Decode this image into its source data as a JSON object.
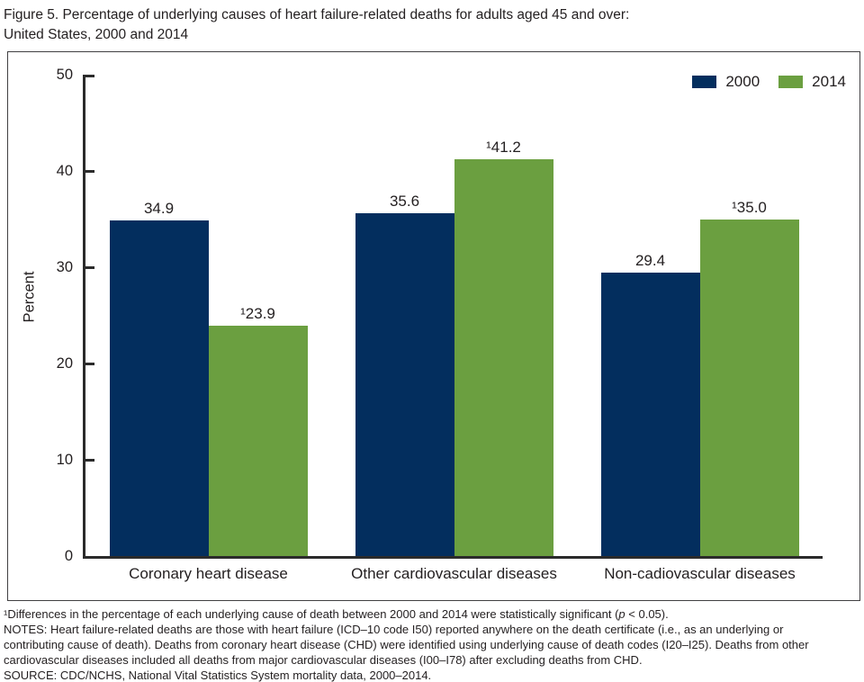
{
  "header": {
    "title_line1": "Figure 5. Percentage of underlying causes of heart failure-related deaths for adults aged 45 and over:",
    "title_line2": "United States, 2000 and 2014"
  },
  "chart_data": {
    "type": "bar",
    "title": "Figure 5. Percentage of underlying causes of heart failure-related deaths for adults aged 45 and over: United States, 2000 and 2014",
    "xlabel": "",
    "ylabel": "Percent",
    "ylim": [
      0,
      50
    ],
    "yticks": [
      0,
      10,
      20,
      30,
      40,
      50
    ],
    "grid": false,
    "legend_position": "top-right",
    "categories": [
      "Coronary heart disease",
      "Other cardiovascular diseases",
      "Non-cadiovascular diseases"
    ],
    "series": [
      {
        "name": "2000",
        "color": "#032e5e",
        "values": [
          34.9,
          35.6,
          29.4
        ],
        "value_labels": [
          "34.9",
          "35.6",
          "29.4"
        ]
      },
      {
        "name": "2014",
        "color": "#6b9f40",
        "values": [
          23.9,
          41.2,
          35.0
        ],
        "value_labels": [
          "¹23.9",
          "¹41.2",
          "¹35.0"
        ]
      }
    ]
  },
  "footnotes": {
    "sig_pre": "¹Differences in the percentage of each underlying cause of death between 2000 and 2014 were statistically significant (",
    "sig_p": "p",
    "sig_post": " < 0.05).",
    "notes_lines": [
      "NOTES: Heart failure-related deaths are those with heart failure (ICD–10 code I50) reported anywhere on the death certificate (i.e., as an underlying or",
      "contributing cause of death). Deaths from coronary heart disease (CHD) were identified using underlying cause of death codes (I20–I25). Deaths from other",
      "cardiovascular diseases included all deaths from major cardiovascular diseases (I00–I78) after excluding deaths from CHD."
    ],
    "source_line": "SOURCE: CDC/NCHS, National Vital Statistics System mortality data, 2000–2014."
  },
  "colors": {
    "series_2000": "#032e5e",
    "series_2014": "#6b9f40",
    "axis": "#2b2b2b",
    "frame_border": "#414042",
    "text": "#231f20"
  }
}
